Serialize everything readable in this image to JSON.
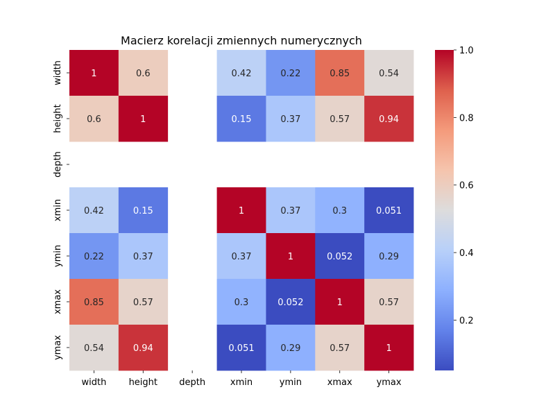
{
  "chart_data": {
    "type": "heatmap",
    "title": "Macierz korelacji zmiennych numerycznych",
    "xlabel": "",
    "ylabel": "",
    "x_categories": [
      "width",
      "height",
      "depth",
      "xmin",
      "ymin",
      "xmax",
      "ymax"
    ],
    "y_categories": [
      "width",
      "height",
      "depth",
      "xmin",
      "ymin",
      "xmax",
      "ymax"
    ],
    "values": [
      [
        1,
        0.6,
        null,
        0.42,
        0.22,
        0.85,
        0.54
      ],
      [
        0.6,
        1,
        null,
        0.15,
        0.37,
        0.57,
        0.94
      ],
      [
        null,
        null,
        null,
        null,
        null,
        null,
        null
      ],
      [
        0.42,
        0.15,
        null,
        1,
        0.37,
        0.3,
        0.051
      ],
      [
        0.22,
        0.37,
        null,
        0.37,
        1,
        0.052,
        0.29
      ],
      [
        0.85,
        0.57,
        null,
        0.3,
        0.052,
        1,
        0.57
      ],
      [
        0.54,
        0.94,
        null,
        0.051,
        0.29,
        0.57,
        1
      ]
    ],
    "labels": [
      [
        "1",
        "0.6",
        "",
        "0.42",
        "0.22",
        "0.85",
        "0.54"
      ],
      [
        "0.6",
        "1",
        "",
        "0.15",
        "0.37",
        "0.57",
        "0.94"
      ],
      [
        "",
        "",
        "",
        "",
        "",
        "",
        ""
      ],
      [
        "0.42",
        "0.15",
        "",
        "1",
        "0.37",
        "0.3",
        "0.051"
      ],
      [
        "0.22",
        "0.37",
        "",
        "0.37",
        "1",
        "0.052",
        "0.29"
      ],
      [
        "0.85",
        "0.57",
        "",
        "0.3",
        "0.052",
        "1",
        "0.57"
      ],
      [
        "0.54",
        "0.94",
        "",
        "0.051",
        "0.29",
        "0.57",
        "1"
      ]
    ],
    "colormap": "coolwarm",
    "vmin": 0.051,
    "vmax": 1.0,
    "colorbar": {
      "ticks": [
        0.2,
        0.4,
        0.6,
        0.8,
        1.0
      ],
      "tick_labels": [
        "0.2",
        "0.4",
        "0.6",
        "0.8",
        "1.0"
      ]
    },
    "grid": false,
    "legend": "colorbar-right"
  }
}
